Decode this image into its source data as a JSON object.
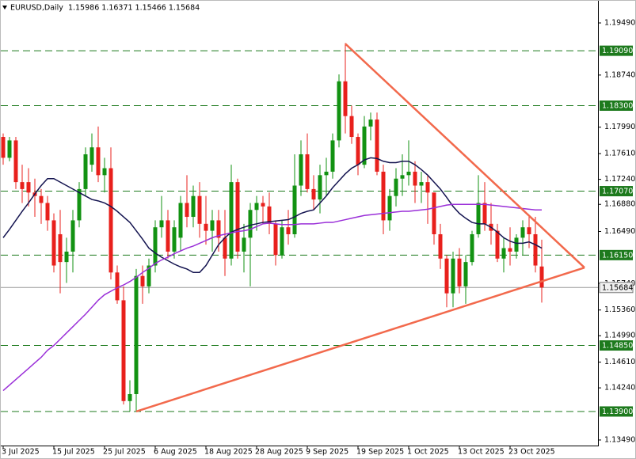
{
  "chart_data": {
    "type": "candlestick",
    "title": "EURUSD,Daily  1.15986 1.16371 1.15466 1.15684",
    "categories": [
      "3 Jul 2025",
      null,
      null,
      null,
      null,
      null,
      null,
      null,
      "15 Jul 2025",
      null,
      null,
      null,
      null,
      null,
      null,
      null,
      "25 Jul 2025",
      null,
      null,
      null,
      null,
      null,
      null,
      null,
      "6 Aug 2025",
      null,
      null,
      null,
      null,
      null,
      null,
      null,
      "18 Aug 2025",
      null,
      null,
      null,
      null,
      null,
      null,
      null,
      "28 Aug 2025",
      null,
      null,
      null,
      null,
      null,
      null,
      null,
      "9 Sep 2025",
      null,
      null,
      null,
      null,
      null,
      null,
      null,
      "19 Sep 2025",
      null,
      null,
      null,
      null,
      null,
      null,
      null,
      "1 Oct 2025",
      null,
      null,
      null,
      null,
      null,
      null,
      null,
      "13 Oct 2025",
      null,
      null,
      null,
      null,
      null,
      null,
      null,
      "23 Oct 2025",
      null,
      null,
      null,
      null,
      null
    ],
    "open": [
      1.1785,
      1.1755,
      1.178,
      1.172,
      1.172,
      1.1705,
      1.17,
      1.169,
      1.1665,
      1.1645,
      1.1605,
      1.162,
      1.1665,
      1.171,
      1.1745,
      1.177,
      1.173,
      1.174,
      1.159,
      1.155,
      1.1405,
      1.1415,
      1.1585,
      1.157,
      1.16,
      1.1655,
      1.1665,
      1.162,
      1.164,
      1.169,
      1.167,
      1.17,
      1.166,
      1.165,
      1.1665,
      1.164,
      1.161,
      1.172,
      1.162,
      1.164,
      1.168,
      1.169,
      1.1685,
      1.166,
      1.1615,
      1.1655,
      1.1645,
      1.1715,
      1.176,
      1.171,
      1.1695,
      1.173,
      1.1735,
      1.178,
      1.1865,
      1.1815,
      1.1785,
      1.1745,
      1.18,
      1.181,
      1.1735,
      1.1665,
      1.17,
      1.1725,
      1.173,
      1.1735,
      1.1715,
      1.172,
      1.1705,
      1.1645,
      1.161,
      1.156,
      1.161,
      1.157,
      1.1605,
      1.1645,
      1.169,
      1.166,
      1.165,
      1.161,
      1.1625,
      1.162,
      1.164,
      1.1655,
      1.1645,
      1.15986
    ],
    "high": [
      1.179,
      1.1785,
      1.1785,
      1.1745,
      1.174,
      1.1725,
      1.171,
      1.17,
      1.1675,
      1.168,
      1.164,
      1.168,
      1.172,
      1.177,
      1.179,
      1.18,
      1.1755,
      1.177,
      1.16,
      1.157,
      1.1435,
      1.1595,
      1.16,
      1.161,
      1.1665,
      1.17,
      1.168,
      1.1665,
      1.17,
      1.173,
      1.1715,
      1.172,
      1.17,
      1.168,
      1.168,
      1.168,
      1.1745,
      1.1725,
      1.166,
      1.169,
      1.17,
      1.17,
      1.1705,
      1.1665,
      1.1665,
      1.168,
      1.176,
      1.178,
      1.179,
      1.173,
      1.1745,
      1.1755,
      1.179,
      1.1875,
      1.192,
      1.183,
      1.179,
      1.1815,
      1.182,
      1.182,
      1.1745,
      1.171,
      1.174,
      1.176,
      1.178,
      1.175,
      1.1735,
      1.173,
      1.1705,
      1.166,
      1.1615,
      1.162,
      1.1625,
      1.1615,
      1.165,
      1.173,
      1.172,
      1.169,
      1.166,
      1.164,
      1.1655,
      1.1645,
      1.1665,
      1.167,
      1.167,
      1.16371
    ],
    "low": [
      1.1745,
      1.175,
      1.171,
      1.169,
      1.1685,
      1.167,
      1.166,
      1.165,
      1.159,
      1.156,
      1.1575,
      1.159,
      1.1655,
      1.17,
      1.1735,
      1.172,
      1.1705,
      1.158,
      1.1545,
      1.14,
      1.139,
      1.139,
      1.1545,
      1.156,
      1.159,
      1.164,
      1.161,
      1.161,
      1.162,
      1.1655,
      1.1655,
      1.164,
      1.163,
      1.162,
      1.162,
      1.1585,
      1.16,
      1.161,
      1.159,
      1.157,
      1.165,
      1.166,
      1.1645,
      1.16,
      1.161,
      1.163,
      1.164,
      1.17,
      1.1705,
      1.168,
      1.1675,
      1.17,
      1.1725,
      1.177,
      1.179,
      1.1775,
      1.173,
      1.174,
      1.178,
      1.173,
      1.1645,
      1.165,
      1.1685,
      1.17,
      1.1715,
      1.169,
      1.169,
      1.166,
      1.163,
      1.1595,
      1.154,
      1.154,
      1.156,
      1.1545,
      1.16,
      1.164,
      1.165,
      1.163,
      1.1605,
      1.159,
      1.16,
      1.161,
      1.1615,
      1.1625,
      1.159,
      1.15466
    ],
    "close": [
      1.1755,
      1.178,
      1.172,
      1.171,
      1.1705,
      1.17,
      1.169,
      1.1665,
      1.16,
      1.1605,
      1.162,
      1.1665,
      1.171,
      1.176,
      1.177,
      1.173,
      1.174,
      1.159,
      1.155,
      1.1405,
      1.1415,
      1.1585,
      1.157,
      1.16,
      1.1655,
      1.1665,
      1.162,
      1.1655,
      1.169,
      1.167,
      1.17,
      1.166,
      1.165,
      1.1665,
      1.164,
      1.161,
      1.172,
      1.162,
      1.164,
      1.168,
      1.169,
      1.1685,
      1.166,
      1.1615,
      1.1655,
      1.1645,
      1.1715,
      1.176,
      1.171,
      1.1695,
      1.173,
      1.1735,
      1.178,
      1.1865,
      1.1815,
      1.1785,
      1.1745,
      1.18,
      1.181,
      1.1735,
      1.1665,
      1.17,
      1.1725,
      1.173,
      1.1735,
      1.1715,
      1.172,
      1.1705,
      1.1645,
      1.161,
      1.156,
      1.161,
      1.157,
      1.1605,
      1.1645,
      1.169,
      1.166,
      1.165,
      1.161,
      1.1625,
      1.162,
      1.164,
      1.1655,
      1.1645,
      1.16,
      1.15684
    ],
    "up_color": "#129212",
    "down_color": "#e8201c",
    "lines": [
      {
        "color": "#141450",
        "values": [
          1.164,
          1.1652,
          1.1665,
          1.1678,
          1.169,
          1.1703,
          1.1715,
          1.1725,
          1.1725,
          1.172,
          1.1715,
          1.171,
          1.1705,
          1.17,
          1.1695,
          1.1693,
          1.169,
          1.1685,
          1.1678,
          1.167,
          1.1662,
          1.165,
          1.1638,
          1.1625,
          1.1618,
          1.1612,
          1.1607,
          1.1602,
          1.1598,
          1.1595,
          1.159,
          1.159,
          1.16,
          1.1615,
          1.163,
          1.164,
          1.1648,
          1.1652,
          1.1655,
          1.1658,
          1.166,
          1.1662,
          1.1663,
          1.1664,
          1.1665,
          1.1666,
          1.167,
          1.1675,
          1.1678,
          1.168,
          1.169,
          1.17,
          1.1712,
          1.1722,
          1.1732,
          1.174,
          1.1745,
          1.1752,
          1.1755,
          1.1754,
          1.175,
          1.1748,
          1.1748,
          1.175,
          1.175,
          1.1745,
          1.1738,
          1.173,
          1.172,
          1.171,
          1.1698,
          1.1685,
          1.1675,
          1.1668,
          1.1662,
          1.166,
          1.166,
          1.1655,
          1.1648,
          1.164,
          1.1635,
          1.1632,
          1.1632,
          1.1634,
          1.163,
          1.1625
        ]
      },
      {
        "color": "#9a2fd8",
        "values": [
          1.142,
          1.1428,
          1.1436,
          1.1444,
          1.1452,
          1.146,
          1.1468,
          1.1478,
          1.1485,
          1.1494,
          1.1503,
          1.1512,
          1.1521,
          1.153,
          1.154,
          1.155,
          1.1558,
          1.1563,
          1.1568,
          1.1572,
          1.1577,
          1.1583,
          1.159,
          1.1596,
          1.1603,
          1.1608,
          1.1612,
          1.1617,
          1.1621,
          1.1625,
          1.1628,
          1.1632,
          1.1636,
          1.164,
          1.1643,
          1.1645,
          1.1647,
          1.1649,
          1.165,
          1.1652,
          1.1656,
          1.166,
          1.1661,
          1.166,
          1.1659,
          1.1659,
          1.1659,
          1.166,
          1.166,
          1.166,
          1.1661,
          1.1662,
          1.1662,
          1.1664,
          1.1666,
          1.1668,
          1.167,
          1.1672,
          1.1673,
          1.1674,
          1.1675,
          1.1676,
          1.1677,
          1.1678,
          1.1678,
          1.1679,
          1.168,
          1.1681,
          1.1683,
          1.1685,
          1.1687,
          1.1688,
          1.1688,
          1.1688,
          1.1688,
          1.1688,
          1.1688,
          1.1687,
          1.1686,
          1.1685,
          1.1684,
          1.1683,
          1.1682,
          1.1681,
          1.168,
          1.168
        ]
      }
    ],
    "trendlines": [
      {
        "color": "#f2694c",
        "x": [
          21,
          91.75
        ],
        "y": [
          1.139,
          1.1597
        ]
      },
      {
        "color": "#f2694c",
        "x": [
          54,
          91.75
        ],
        "y": [
          1.1919,
          1.1597
        ]
      }
    ],
    "levels": [
      {
        "value": 1.1909,
        "label": "1.19090"
      },
      {
        "value": 1.183,
        "label": "1.18300"
      },
      {
        "value": 1.1707,
        "label": "1.17070"
      },
      {
        "value": 1.1615,
        "label": "1.16150"
      },
      {
        "value": 1.1485,
        "label": "1.14850"
      },
      {
        "value": 1.139,
        "label": "1.13900"
      }
    ],
    "level_color": "#1d7a1d",
    "last_price": {
      "value": 1.15684,
      "label": "1.15684"
    },
    "ylim": [
      1.1341,
      1.1982
    ],
    "yticks": [
      {
        "value": 1.1949,
        "label": "1.19490"
      },
      {
        "value": 1.1874,
        "label": "1.18740"
      },
      {
        "value": 1.1799,
        "label": "1.17990"
      },
      {
        "value": 1.1761,
        "label": "1.17610"
      },
      {
        "value": 1.1724,
        "label": "1.17240"
      },
      {
        "value": 1.1688,
        "label": "1.16880"
      },
      {
        "value": 1.1649,
        "label": "1.16490"
      },
      {
        "value": 1.1574,
        "label": "1.15740"
      },
      {
        "value": 1.1536,
        "label": "1.15360"
      },
      {
        "value": 1.1499,
        "label": "1.14990"
      },
      {
        "value": 1.1461,
        "label": "1.14610"
      },
      {
        "value": 1.1424,
        "label": "1.14240"
      },
      {
        "value": 1.1349,
        "label": "1.13490"
      }
    ]
  }
}
